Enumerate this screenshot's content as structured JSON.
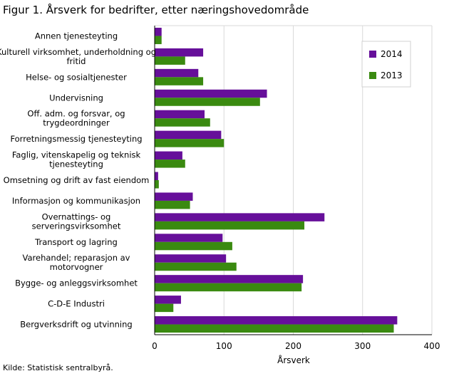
{
  "title": "Figur 1. Årsverk for bedrifter, etter næringshovedområde",
  "source": "Kilde: Statistisk sentralbyrå.",
  "colors": {
    "s2014": "#660f9a",
    "s2013": "#3a8a10",
    "grid": "#d9d9d9",
    "axis": "#000000"
  },
  "chart_data": {
    "type": "bar",
    "orientation": "horizontal",
    "title": "Figur 1. Årsverk for bedrifter, etter næringshovedområde",
    "xlabel": "Årsverk",
    "ylabel": "",
    "xlim": [
      0,
      400
    ],
    "xticks": [
      "0",
      "100",
      "200",
      "300",
      "400"
    ],
    "grid": true,
    "legend_position": "top-right",
    "categories": [
      [
        "Annen tjenesteyting"
      ],
      [
        "Kulturell virksomhet, underholdning og",
        "fritid"
      ],
      [
        "Helse- og sosialtjenester"
      ],
      [
        "Undervisning"
      ],
      [
        "Off. adm. og forsvar, og",
        "trygdeordninger"
      ],
      [
        "Forretningsmessig tjenesteyting"
      ],
      [
        "Faglig, vitenskapelig og teknisk",
        "tjenesteyting"
      ],
      [
        "Omsetning og drift av fast eiendom"
      ],
      [
        "Informasjon og kommunikasjon"
      ],
      [
        "Overnattings- og",
        "serveringsvirksomhet"
      ],
      [
        "Transport og lagring"
      ],
      [
        "Varehandel; reparasjon av",
        "motorvogner"
      ],
      [
        "Bygge- og anleggsvirksomhet"
      ],
      [
        "C-D-E Industri"
      ],
      [
        "Bergverksdrift og utvinning"
      ]
    ],
    "series": [
      {
        "name": "2014",
        "values": [
          10,
          70,
          63,
          162,
          72,
          96,
          40,
          5,
          55,
          245,
          98,
          103,
          214,
          38,
          350
        ]
      },
      {
        "name": "2013",
        "values": [
          10,
          44,
          70,
          152,
          80,
          100,
          44,
          6,
          51,
          216,
          112,
          118,
          212,
          27,
          345
        ]
      }
    ]
  }
}
